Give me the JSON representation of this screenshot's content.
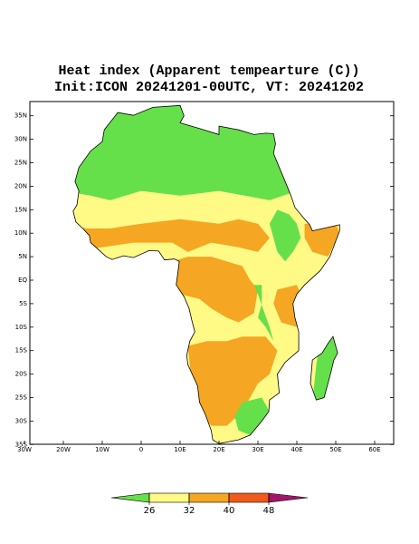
{
  "title": [
    "Heat index (Apparent tempearture (C))",
    "Init:ICON 20241201-00UTC, VT: 20241202"
  ],
  "map": {
    "lat_ticks": [
      {
        "value": 35,
        "label": "35N"
      },
      {
        "value": 30,
        "label": "30N"
      },
      {
        "value": 25,
        "label": "25N"
      },
      {
        "value": 20,
        "label": "20N"
      },
      {
        "value": 15,
        "label": "15N"
      },
      {
        "value": 10,
        "label": "10N"
      },
      {
        "value": 5,
        "label": "5N"
      },
      {
        "value": 0,
        "label": "EQ"
      },
      {
        "value": -5,
        "label": "5S"
      },
      {
        "value": -10,
        "label": "10S"
      },
      {
        "value": -15,
        "label": "15S"
      },
      {
        "value": -20,
        "label": "20S"
      },
      {
        "value": -25,
        "label": "25S"
      },
      {
        "value": -30,
        "label": "30S"
      },
      {
        "value": -35,
        "label": "35S"
      }
    ],
    "lon_ticks": [
      {
        "value": -30,
        "label": "30W"
      },
      {
        "value": -20,
        "label": "20W"
      },
      {
        "value": -10,
        "label": "10W"
      },
      0,
      {
        "value": 10,
        "label": "10E"
      },
      {
        "value": 20,
        "label": "20E"
      },
      {
        "value": 30,
        "label": "30E"
      },
      {
        "value": 40,
        "label": "40E"
      },
      {
        "value": 50,
        "label": "50E"
      },
      {
        "value": 60,
        "label": "60E"
      }
    ]
  },
  "colorbar": {
    "ticks": [
      26,
      32,
      40,
      48
    ],
    "colors": [
      "#66e04a",
      "#fffa85",
      "#f5a623",
      "#f05a1a",
      "#a0186a"
    ]
  }
}
